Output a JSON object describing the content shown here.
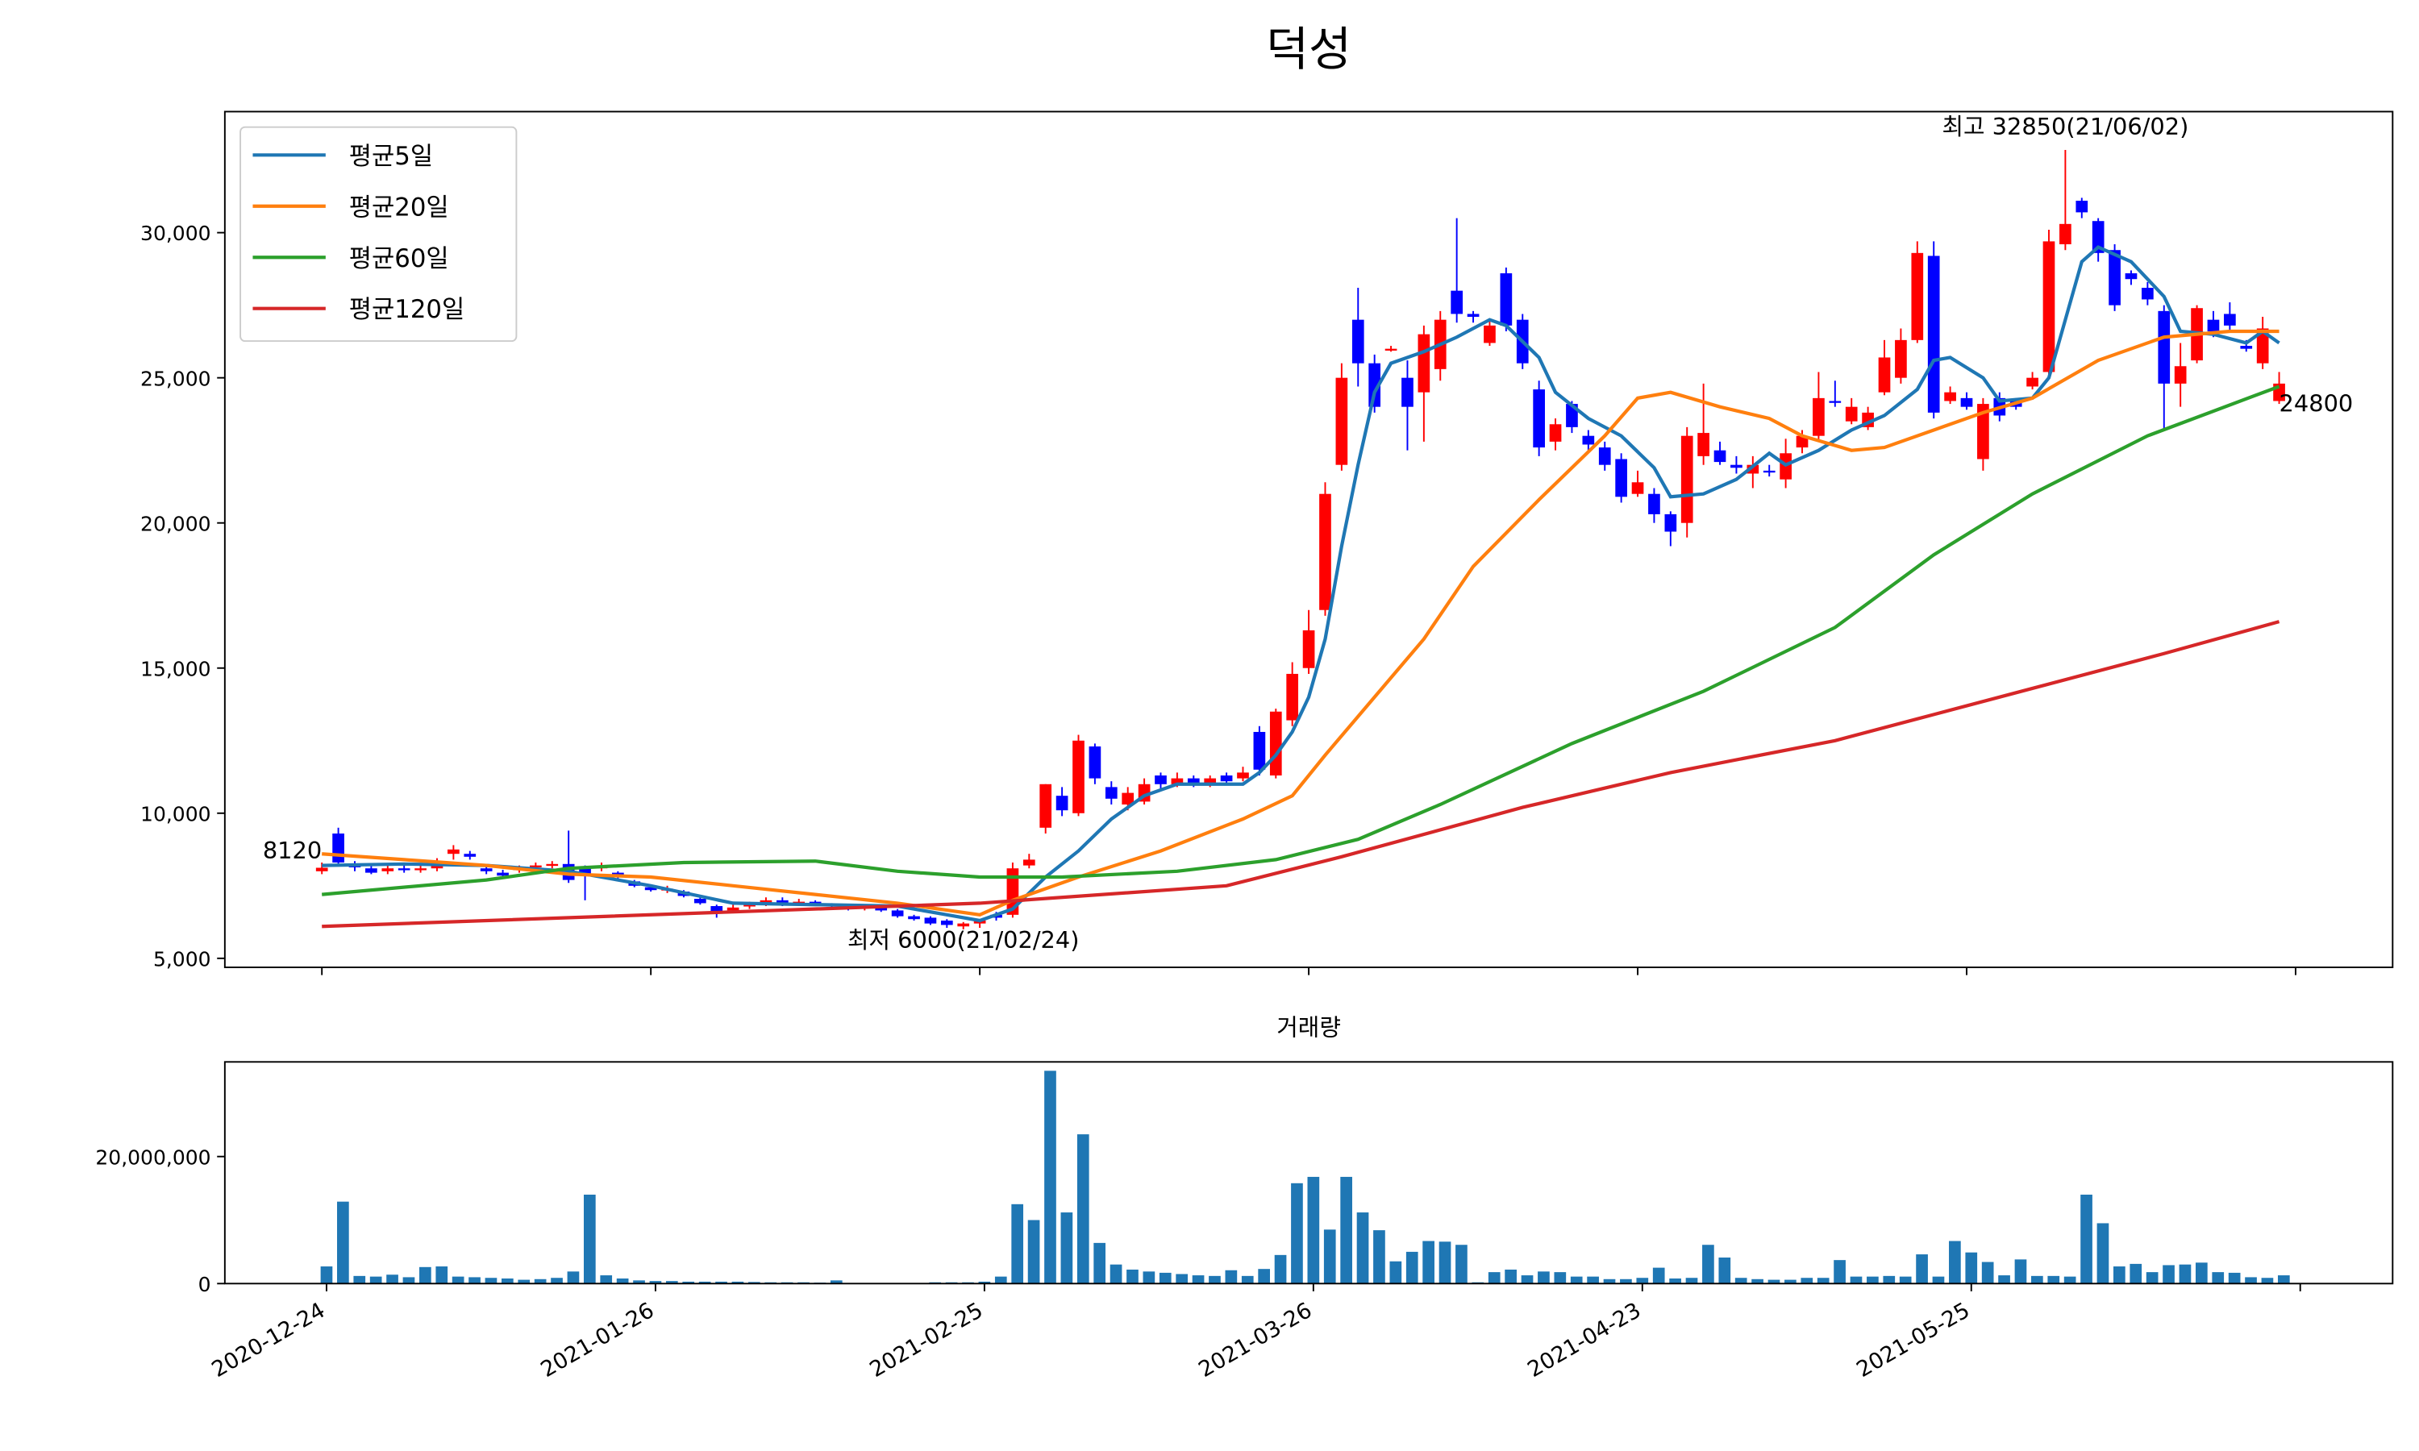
{
  "chart_data": [
    {
      "type": "candlestick",
      "title": "덕성",
      "up_color": "#ff0000",
      "down_color": "#0000ff",
      "x": [
        0,
        1,
        2,
        3,
        4,
        5,
        6,
        7,
        8,
        9,
        10,
        11,
        12,
        13,
        14,
        15,
        16,
        17,
        18,
        19,
        20,
        21,
        22,
        23,
        24,
        25,
        26,
        27,
        28,
        29,
        30,
        31,
        32,
        33,
        34,
        35,
        36,
        37,
        38,
        39,
        40,
        41,
        42,
        43,
        44,
        45,
        46,
        47,
        48,
        49,
        50,
        51,
        52,
        53,
        54,
        55,
        56,
        57,
        58,
        59,
        60,
        61,
        62,
        63,
        64,
        65,
        66,
        67,
        68,
        69,
        70,
        71,
        72,
        73,
        74,
        75,
        76,
        77,
        78,
        79,
        80,
        81,
        82,
        83,
        84,
        85,
        86,
        87,
        88,
        89,
        90,
        91,
        92,
        93,
        94,
        95,
        96,
        97,
        98,
        99,
        100,
        101,
        102,
        103,
        104,
        105,
        106,
        107,
        108,
        109,
        110,
        111,
        112,
        113,
        114,
        115,
        116,
        117,
        118,
        119
      ],
      "open": [
        8000,
        9300,
        8200,
        8100,
        8000,
        8100,
        8050,
        8100,
        8600,
        8600,
        8100,
        7950,
        8050,
        8150,
        8200,
        8250,
        8100,
        8100,
        7950,
        7650,
        7450,
        7350,
        7300,
        7050,
        6800,
        6650,
        6800,
        6900,
        7000,
        6900,
        6950,
        6850,
        6800,
        6750,
        6800,
        6650,
        6450,
        6400,
        6300,
        6100,
        6200,
        6500,
        6500,
        8200,
        9500,
        10600,
        10000,
        12300,
        10900,
        10300,
        10400,
        11300,
        11000,
        11200,
        11000,
        11300,
        11200,
        12800,
        11300,
        13200,
        15000,
        17000,
        22000,
        27000,
        25500,
        26000,
        25000,
        24500,
        25300,
        28000,
        27200,
        26200,
        28600,
        27000,
        24600,
        22800,
        24100,
        23000,
        22600,
        22200,
        21000,
        21000,
        20300,
        20000,
        22300,
        22500,
        22000,
        21700,
        21800,
        21500,
        22600,
        23000,
        24200,
        23500,
        23300,
        24500,
        25000,
        26300,
        29200,
        24200,
        24300,
        22200,
        24300,
        24200,
        24700,
        25200,
        29600,
        31100,
        30400,
        29400,
        28600,
        28100,
        27300,
        24800,
        25600,
        27000,
        27200,
        26100,
        25500,
        24200
      ],
      "high": [
        8300,
        9500,
        8350,
        8250,
        8200,
        8200,
        8250,
        8450,
        8900,
        8700,
        8200,
        8050,
        8200,
        8300,
        8350,
        9400,
        8200,
        8300,
        8000,
        7700,
        7550,
        7500,
        7350,
        7100,
        6850,
        6850,
        6950,
        7100,
        7100,
        7050,
        7000,
        6900,
        6850,
        6850,
        6850,
        6700,
        6500,
        6450,
        6350,
        6250,
        6350,
        6600,
        8300,
        8600,
        11000,
        10900,
        12700,
        12400,
        11100,
        10900,
        11200,
        11400,
        11400,
        11300,
        11300,
        11400,
        11600,
        13000,
        13600,
        15200,
        17000,
        21400,
        25500,
        28100,
        25800,
        26100,
        25600,
        26800,
        27300,
        30500,
        27300,
        27000,
        28800,
        27200,
        24900,
        23600,
        24200,
        23200,
        22800,
        22400,
        21800,
        21200,
        20400,
        23300,
        24800,
        22800,
        22300,
        22300,
        22000,
        22900,
        23200,
        25200,
        24900,
        24300,
        24000,
        26300,
        26700,
        29700,
        29700,
        24700,
        24500,
        24300,
        24500,
        24300,
        25200,
        30100,
        32850,
        31200,
        30500,
        29600,
        28700,
        28300,
        27500,
        26200,
        27500,
        27300,
        27600,
        26300,
        27100,
        25200
      ],
      "low": [
        7900,
        8200,
        8000,
        7900,
        7900,
        7950,
        7950,
        8000,
        8400,
        8400,
        7900,
        7750,
        7950,
        8050,
        8100,
        7600,
        7000,
        8000,
        7750,
        7450,
        7300,
        7250,
        7100,
        6850,
        6400,
        6550,
        6700,
        6800,
        6800,
        6850,
        6800,
        6700,
        6650,
        6650,
        6600,
        6400,
        6300,
        6150,
        6050,
        6000,
        6050,
        6300,
        6400,
        8100,
        9300,
        9900,
        9900,
        11000,
        10300,
        10100,
        10300,
        10800,
        10900,
        10900,
        10900,
        11000,
        11100,
        11300,
        11200,
        13000,
        14800,
        16800,
        21800,
        24700,
        23800,
        25900,
        22500,
        22800,
        24900,
        26900,
        26900,
        26100,
        26600,
        25300,
        22300,
        22500,
        23100,
        22500,
        21800,
        20700,
        20900,
        20000,
        19200,
        19500,
        22000,
        22000,
        21700,
        21200,
        21600,
        21200,
        22400,
        22800,
        24000,
        23400,
        23200,
        24400,
        24800,
        26200,
        23600,
        24100,
        23900,
        21800,
        23500,
        23900,
        24600,
        25100,
        29400,
        30500,
        29000,
        27300,
        28200,
        27500,
        23200,
        24000,
        25500,
        26400,
        26600,
        25900,
        25300,
        24100
      ],
      "close": [
        8120,
        8300,
        8150,
        7950,
        8100,
        8050,
        8100,
        8300,
        8750,
        8500,
        8000,
        7850,
        8100,
        8200,
        8250,
        7700,
        7900,
        8200,
        7800,
        7500,
        7350,
        7400,
        7150,
        6900,
        6600,
        6750,
        6850,
        7000,
        6900,
        6950,
        6850,
        6800,
        6750,
        6800,
        6650,
        6450,
        6350,
        6200,
        6150,
        6200,
        6300,
        6400,
        8100,
        8400,
        11000,
        10100,
        12500,
        11200,
        10500,
        10700,
        11000,
        11000,
        11200,
        11000,
        11200,
        11100,
        11400,
        11500,
        13500,
        14800,
        16300,
        21000,
        25000,
        25500,
        24000,
        26000,
        24000,
        26500,
        27000,
        27200,
        27100,
        26800,
        26800,
        25500,
        22600,
        23400,
        23300,
        22700,
        22000,
        20900,
        21400,
        20300,
        19700,
        23000,
        23100,
        22100,
        21900,
        22000,
        21750,
        22400,
        23000,
        24300,
        24150,
        24000,
        23800,
        25700,
        26300,
        29300,
        23800,
        24500,
        24000,
        24100,
        23700,
        24000,
        25000,
        29700,
        30300,
        30700,
        29300,
        27500,
        28400,
        27700,
        24800,
        25400,
        27400,
        26600,
        26800,
        26000,
        26700,
        24800
      ],
      "ylim": [
        4690,
        34170
      ],
      "xlim": [
        -5.9,
        125.9
      ],
      "yticks": [
        {
          "value": 5000,
          "label": "5,000"
        },
        {
          "value": 10000,
          "label": "10,000"
        },
        {
          "value": 15000,
          "label": "15,000"
        },
        {
          "value": 20000,
          "label": "20,000"
        },
        {
          "value": 25000,
          "label": "25,000"
        },
        {
          "value": 30000,
          "label": "30,000"
        }
      ],
      "legend": "upper left",
      "series": [
        {
          "name": "평균5일",
          "color": "#1f77b4",
          "x": [
            0,
            5,
            10,
            15,
            20,
            25,
            30,
            35,
            38,
            40,
            42,
            44,
            46,
            48,
            50,
            52,
            56,
            57,
            58,
            59,
            60,
            61,
            62,
            63,
            64,
            65,
            67,
            69,
            71,
            72,
            74,
            75,
            77,
            79,
            81,
            82,
            84,
            86,
            88,
            89,
            91,
            93,
            95,
            97,
            98,
            99,
            101,
            102,
            104,
            105,
            106,
            107,
            108,
            110,
            112,
            113,
            115,
            117,
            118,
            119
          ],
          "values": [
            8200,
            8250,
            8200,
            8000,
            7500,
            6900,
            6850,
            6800,
            6500,
            6300,
            6700,
            7800,
            8700,
            9800,
            10600,
            11000,
            11000,
            11400,
            12000,
            12800,
            14000,
            16000,
            19200,
            22000,
            24500,
            25500,
            25900,
            26400,
            27000,
            26800,
            25700,
            24500,
            23600,
            23000,
            21900,
            20900,
            21000,
            21500,
            22400,
            22000,
            22500,
            23200,
            23700,
            24600,
            25600,
            25700,
            25000,
            24200,
            24300,
            25000,
            27000,
            29000,
            29500,
            29000,
            27800,
            26600,
            26500,
            26200,
            26600,
            26200
          ]
        },
        {
          "name": "평균20일",
          "color": "#ff7f0e",
          "x": [
            0,
            5,
            10,
            15,
            20,
            25,
            30,
            35,
            40,
            42,
            46,
            51,
            56,
            59,
            61,
            64,
            67,
            70,
            74,
            78,
            80,
            82,
            85,
            88,
            90,
            93,
            95,
            98,
            101,
            104,
            108,
            112,
            116,
            119
          ],
          "values": [
            8600,
            8400,
            8200,
            7900,
            7800,
            7500,
            7200,
            6900,
            6500,
            7000,
            7800,
            8700,
            9800,
            10600,
            12000,
            14000,
            16000,
            18500,
            20800,
            23000,
            24300,
            24500,
            24000,
            23600,
            23000,
            22500,
            22600,
            23200,
            23800,
            24300,
            25600,
            26400,
            26600,
            26600
          ]
        },
        {
          "name": "평균60일",
          "color": "#2ca02c",
          "x": [
            0,
            10,
            15,
            22,
            30,
            35,
            40,
            45,
            52,
            58,
            63,
            68,
            76,
            84,
            92,
            98,
            104,
            111,
            119
          ],
          "values": [
            7200,
            7700,
            8100,
            8300,
            8350,
            8000,
            7800,
            7800,
            8000,
            8400,
            9100,
            10300,
            12400,
            14200,
            16400,
            18900,
            21000,
            23000,
            24700
          ]
        },
        {
          "name": "평균120일",
          "color": "#d62728",
          "x": [
            0,
            40,
            55,
            62,
            73,
            82,
            92,
            98,
            104,
            112,
            119
          ],
          "values": [
            6100,
            6900,
            7500,
            8500,
            10200,
            11400,
            12500,
            13400,
            14300,
            15500,
            16600
          ]
        }
      ],
      "annotations": [
        {
          "text": "최고 32850(21/06/02)",
          "x": 106,
          "y": 32850,
          "color": "#ff0000"
        },
        {
          "text": "최저 6000(21/02/24)",
          "x": 39,
          "y": 6000,
          "color": "#0000ff"
        },
        {
          "text": "8120",
          "x": 0,
          "y": 8120,
          "color": "#000000"
        },
        {
          "text": "24800",
          "x": 119,
          "y": 24800,
          "color": "#000000"
        }
      ]
    },
    {
      "type": "bar",
      "title": "거래량",
      "color": "#1f77b4",
      "values": [
        2700000,
        12900000,
        1200000,
        1100000,
        1400000,
        1000000,
        2600000,
        2700000,
        1100000,
        1000000,
        900000,
        800000,
        600000,
        700000,
        900000,
        1900000,
        14000000,
        1300000,
        800000,
        500000,
        400000,
        400000,
        300000,
        300000,
        300000,
        300000,
        250000,
        200000,
        200000,
        200000,
        150000,
        500000,
        100000,
        100000,
        100000,
        100000,
        100000,
        200000,
        200000,
        200000,
        300000,
        1100000,
        12500000,
        10000000,
        33500000,
        11200000,
        23500000,
        6400000,
        3000000,
        2200000,
        1900000,
        1700000,
        1500000,
        1300000,
        1200000,
        2100000,
        1200000,
        2300000,
        4500000,
        15800000,
        16800000,
        8500000,
        16800000,
        11200000,
        8400000,
        3500000,
        5000000,
        6700000,
        6600000,
        6100000,
        200000,
        1800000,
        2200000,
        1300000,
        1900000,
        1800000,
        1100000,
        1100000,
        700000,
        700000,
        900000,
        2500000,
        800000,
        900000,
        6100000,
        4100000,
        900000,
        700000,
        600000,
        600000,
        900000,
        900000,
        3700000,
        1100000,
        1100000,
        1200000,
        1100000,
        4600000,
        1100000,
        6700000,
        4900000,
        3400000,
        1300000,
        3800000,
        1200000,
        1200000,
        1100000,
        14000000,
        9500000,
        2700000,
        3100000,
        1800000,
        2900000,
        3000000,
        3300000,
        1800000,
        1700000,
        1000000,
        900000,
        1300000
      ],
      "ylim": [
        0,
        34900000
      ],
      "yticks": [
        0,
        {
          "value": 20000000,
          "label": "20,000,000"
        }
      ],
      "xticks": [
        {
          "value": 0,
          "label": "2020-12-24"
        },
        {
          "value": 20,
          "label": "2021-01-26"
        },
        {
          "value": 40,
          "label": "2021-02-25"
        },
        {
          "value": 60,
          "label": "2021-03-26"
        },
        {
          "value": 80,
          "label": "2021-04-23"
        },
        {
          "value": 100,
          "label": "2021-05-25"
        },
        {
          "value": 120,
          "label": null
        }
      ]
    }
  ]
}
